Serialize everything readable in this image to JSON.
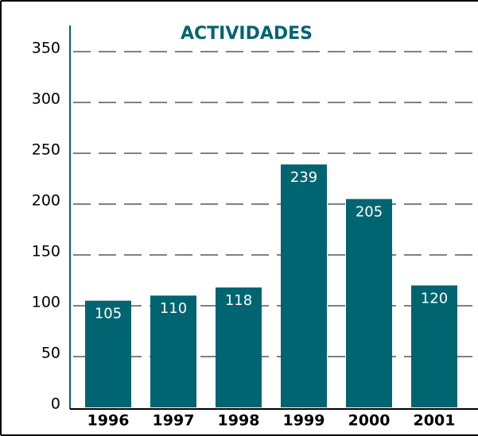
{
  "chart_data": {
    "type": "bar",
    "title": "ACTIVIDADES",
    "categories": [
      "1996",
      "1997",
      "1998",
      "1999",
      "2000",
      "2001"
    ],
    "values": [
      105,
      110,
      118,
      239,
      205,
      120
    ],
    "color": "#006570",
    "ylim": [
      0,
      350
    ],
    "yticks": [
      0,
      50,
      100,
      150,
      200,
      250,
      300,
      350
    ],
    "grid": true
  }
}
